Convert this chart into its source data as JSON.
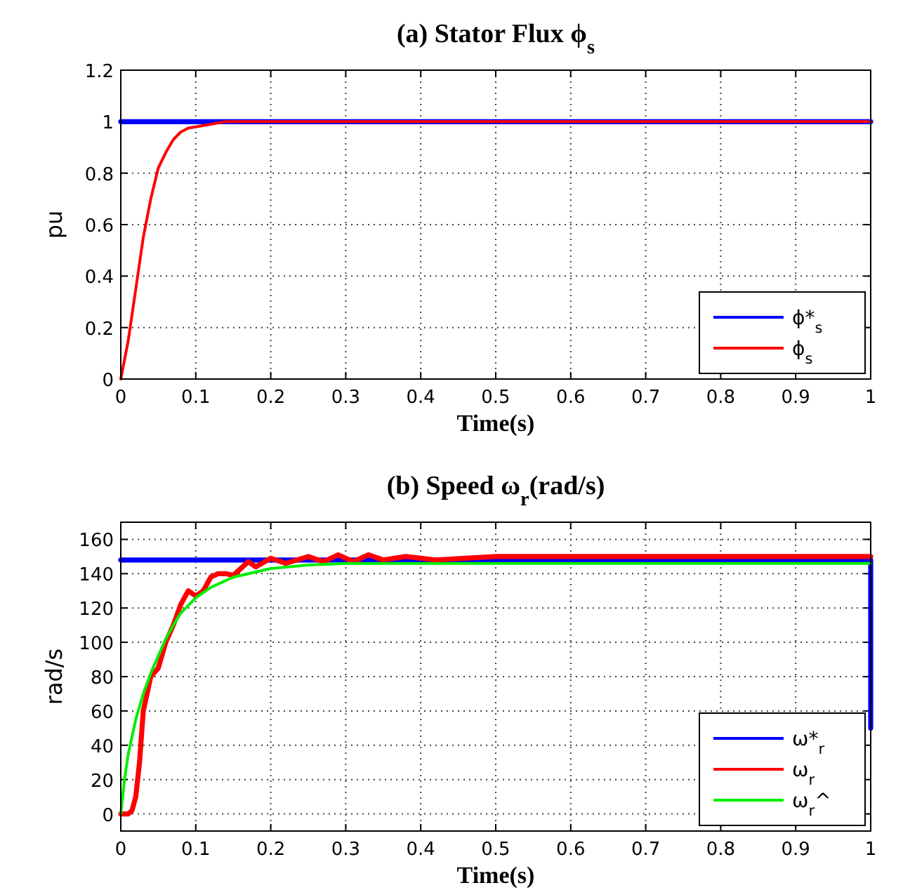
{
  "chart_data": [
    {
      "type": "line",
      "title": "(a) Stator Flux ϕ$_{s}$",
      "xlabel": "Time(s)",
      "ylabel": "pu",
      "xlim": [
        0,
        1
      ],
      "xticks": [
        0,
        0.1,
        0.2,
        0.3,
        0.4,
        0.5,
        0.6,
        0.7,
        0.8,
        0.9,
        1
      ],
      "ylim": [
        0,
        1.2
      ],
      "yticks": [
        0,
        0.2,
        0.4,
        0.6,
        0.8,
        1,
        1.2
      ],
      "grid": true,
      "legend": "bottom right",
      "line_style": "solid",
      "series": [
        {
          "name": "ϕ*$_{s}$",
          "color": "#0000ff",
          "x": [
            0,
            1
          ],
          "values": [
            1,
            1
          ]
        },
        {
          "name": "ϕ$_{s}$",
          "color": "#ff0000",
          "x": [
            0,
            0.01,
            0.02,
            0.03,
            0.04,
            0.05,
            0.06,
            0.07,
            0.08,
            0.09,
            0.1,
            0.12,
            0.14,
            1
          ],
          "values": [
            0,
            0.15,
            0.35,
            0.55,
            0.7,
            0.82,
            0.88,
            0.93,
            0.96,
            0.975,
            0.98,
            0.99,
            1,
            1
          ]
        }
      ]
    },
    {
      "type": "line",
      "title": "(b) Speed ω$_{r}$(rad/s)",
      "xlabel": "Time(s)",
      "ylabel": "rad/s",
      "xlim": [
        0,
        1
      ],
      "xticks": [
        0,
        0.1,
        0.2,
        0.3,
        0.4,
        0.5,
        0.6,
        0.7,
        0.8,
        0.9,
        1
      ],
      "ylim": [
        -10,
        170
      ],
      "yticks": [
        0,
        20,
        40,
        60,
        80,
        100,
        120,
        140,
        160
      ],
      "grid": true,
      "legend": "bottom right",
      "line_style": "solid",
      "series": [
        {
          "name": "ω*$_{r}$",
          "color": "#0000ff",
          "x": [
            0,
            1,
            1
          ],
          "values": [
            148,
            148,
            50
          ]
        },
        {
          "name": "ω$_{r}$",
          "color": "#ff0000",
          "x": [
            0,
            0.01,
            0.015,
            0.02,
            0.025,
            0.03,
            0.04,
            0.05,
            0.06,
            0.07,
            0.08,
            0.09,
            0.1,
            0.11,
            0.12,
            0.13,
            0.14,
            0.15,
            0.16,
            0.17,
            0.18,
            0.2,
            0.22,
            0.25,
            0.27,
            0.29,
            0.31,
            0.33,
            0.35,
            0.38,
            0.42,
            0.5,
            0.6,
            0.7,
            0.8,
            0.9,
            1
          ],
          "values": [
            0,
            0,
            2,
            10,
            30,
            60,
            80,
            85,
            100,
            110,
            122,
            130,
            127,
            130,
            138,
            140,
            140,
            139,
            143,
            147,
            144,
            149,
            146,
            150,
            147,
            151,
            147,
            151,
            148,
            150,
            148,
            150,
            150,
            150,
            150,
            150,
            150
          ]
        },
        {
          "name": "ω$_{r}$^",
          "color": "#00ee00",
          "x": [
            0,
            0.005,
            0.01,
            0.02,
            0.03,
            0.04,
            0.05,
            0.06,
            0.07,
            0.08,
            0.1,
            0.12,
            0.15,
            0.2,
            0.25,
            0.3,
            0.4,
            1
          ],
          "values": [
            0,
            20,
            35,
            55,
            70,
            82,
            92,
            102,
            110,
            117,
            126,
            132,
            138,
            143,
            145,
            146,
            146,
            146
          ]
        }
      ]
    }
  ]
}
